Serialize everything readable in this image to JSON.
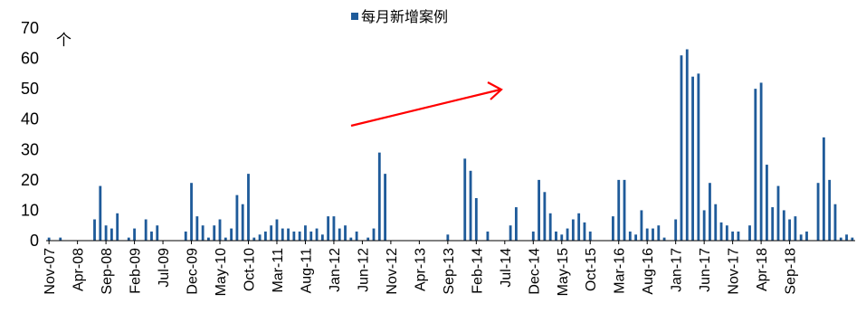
{
  "chart_data": {
    "type": "bar",
    "legend": {
      "label": "每月新增案例",
      "color": "#1f5b9a",
      "placement": "top-center"
    },
    "y_unit": "个",
    "ylim": [
      0,
      70
    ],
    "yticks": [
      "0",
      "10",
      "20",
      "30",
      "40",
      "50",
      "60",
      "70"
    ],
    "start_month": "2007-11",
    "x_tick_labels": [
      "Nov-07",
      "Apr-08",
      "Sep-08",
      "Feb-09",
      "Jul-09",
      "Dec-09",
      "May-10",
      "Oct-10",
      "Mar-11",
      "Aug-11",
      "Jan-12",
      "Jun-12",
      "Nov-12",
      "Apr-13",
      "Sep-13",
      "Feb-14",
      "Jul-14",
      "Dec-14",
      "May-15",
      "Oct-15",
      "Mar-16",
      "Aug-16",
      "Jan-17",
      "Jun-17",
      "Nov-17",
      "Apr-18",
      "Sep-18"
    ],
    "series": [
      {
        "name": "每月新增案例",
        "color": "#1f5b9a",
        "values": [
          1,
          0,
          1,
          0,
          0,
          0,
          0,
          0,
          7,
          18,
          5,
          4,
          9,
          0,
          1,
          4,
          0,
          7,
          3,
          5,
          0,
          0,
          0,
          0,
          3,
          19,
          8,
          5,
          1,
          5,
          7,
          1,
          4,
          15,
          12,
          22,
          1,
          2,
          3,
          5,
          7,
          4,
          4,
          3,
          3,
          5,
          3,
          4,
          2,
          8,
          8,
          4,
          5,
          1,
          3,
          0,
          1,
          4,
          29,
          22,
          0,
          0,
          0,
          0,
          0,
          0,
          0,
          0,
          0,
          0,
          2,
          0,
          0,
          27,
          23,
          14,
          0,
          3,
          0,
          0,
          0,
          5,
          11,
          0,
          0,
          3,
          20,
          16,
          9,
          3,
          2,
          4,
          7,
          9,
          6,
          3,
          0,
          0,
          0,
          8,
          20,
          20,
          3,
          2,
          10,
          4,
          4,
          5,
          1,
          0,
          7,
          61,
          63,
          54,
          55,
          10,
          19,
          12,
          6,
          5,
          3,
          3,
          0,
          5,
          50,
          52,
          25,
          11,
          18,
          10,
          7,
          8,
          2,
          3,
          0,
          19,
          34,
          20,
          12,
          1,
          2,
          1
        ]
      }
    ],
    "annotation": {
      "type": "arrow",
      "color": "#ff0000",
      "meaning": "upward trend"
    }
  }
}
